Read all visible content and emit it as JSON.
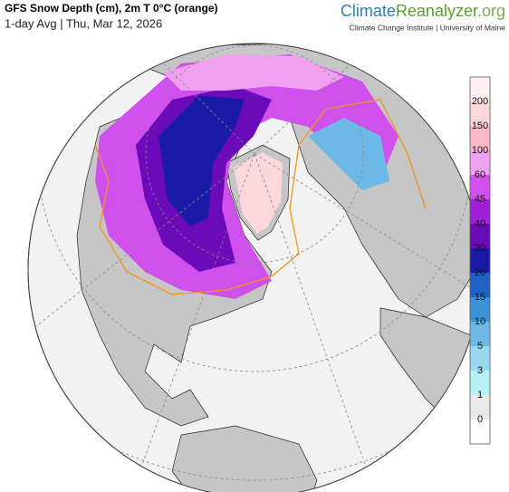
{
  "header": {
    "title": "GFS Snow Depth (cm), 2m T 0°C (orange)",
    "subtitle": "1-day Avg | Thu, Mar 12, 2026",
    "brand": {
      "part1": "Climate",
      "part2": "Reanalyzer",
      "part3": ".org"
    },
    "institute": "Climate Change Institute | University of Maine"
  },
  "legend": {
    "labels": [
      0,
      1,
      3,
      5,
      10,
      15,
      20,
      30,
      40,
      45,
      60,
      100,
      150,
      200
    ],
    "colors": [
      "#ffffff",
      "#e8e8e8",
      "#b8f0f8",
      "#9ad8f0",
      "#6cb8e6",
      "#3a92d8",
      "#1f62c4",
      "#1a1aa8",
      "#6a0ab8",
      "#a020d8",
      "#d050ee",
      "#f0a0f0",
      "#f8b8c8",
      "#fcd8dc",
      "#fff0f2"
    ]
  }
}
